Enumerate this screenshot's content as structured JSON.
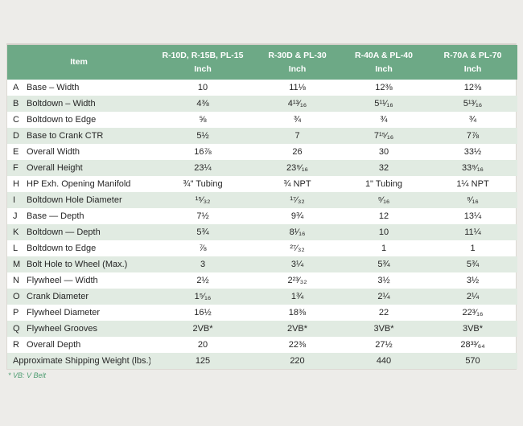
{
  "colors": {
    "page_bg": "#edece9",
    "header_green": "#6da986",
    "stripe_green": "#e1ebe2",
    "footnote_green": "#4f9d72"
  },
  "footnote": "* VB: V Belt",
  "table": {
    "header": {
      "item_label": "Item",
      "columns": [
        {
          "model": "R-10D, R-15B, PL-15",
          "unit": "Inch"
        },
        {
          "model": "R-30D & PL-30",
          "unit": "Inch"
        },
        {
          "model": "R-40A & PL-40",
          "unit": "Inch"
        },
        {
          "model": "R-70A & PL-70",
          "unit": "Inch"
        }
      ]
    },
    "rows": [
      {
        "letter": "A",
        "item": "Base – Width",
        "values": [
          "10",
          "11⅛",
          "12⅜",
          "12⅜"
        ]
      },
      {
        "letter": "B",
        "item": "Boltdown – Width",
        "values": [
          "4⅜",
          "4¹³⁄₁₆",
          "5¹¹⁄₁₆",
          "5¹³⁄₁₆"
        ]
      },
      {
        "letter": "C",
        "item": "Boltdown to Edge",
        "values": [
          "⅝",
          "¾",
          "¾",
          "¾"
        ]
      },
      {
        "letter": "D",
        "item": "Base to Crank CTR",
        "values": [
          "5½",
          "7",
          "7¹⁵⁄₁₆",
          "7⅞"
        ]
      },
      {
        "letter": "E",
        "item": "Overall Width",
        "values": [
          "16⅞",
          "26",
          "30",
          "33½"
        ]
      },
      {
        "letter": "F",
        "item": "Overall Height",
        "values": [
          "23¼",
          "23⁹⁄₁₆",
          "32",
          "33⁹⁄₁₆"
        ]
      },
      {
        "letter": "H",
        "item": "HP Exh. Opening Manifold",
        "values": [
          "¾\" Tubing",
          "¾ NPT",
          "1\" Tubing",
          "1¼ NPT"
        ]
      },
      {
        "letter": "I",
        "item": "Boltdown Hole Diameter",
        "values": [
          "¹⁵⁄₃₂",
          "¹⁷⁄₃₂",
          "⁹⁄₁₆",
          "⁹⁄₁₆"
        ]
      },
      {
        "letter": "J",
        "item": "Base — Depth",
        "values": [
          "7½",
          "9¾",
          "12",
          "13¼"
        ]
      },
      {
        "letter": "K",
        "item": "Boltdown — Depth",
        "values": [
          "5¾",
          "8¹⁄₁₆",
          "10",
          "11¼"
        ]
      },
      {
        "letter": "L",
        "item": "Boltdown to Edge",
        "values": [
          "⅞",
          "²⁷⁄₃₂",
          "1",
          "1"
        ]
      },
      {
        "letter": "M",
        "item": "Bolt Hole to Wheel (Max.)",
        "values": [
          "3",
          "3¼",
          "5¾",
          "5¾"
        ]
      },
      {
        "letter": "N",
        "item": "Flywheel — Width",
        "values": [
          "2½",
          "2²³⁄₃₂",
          "3½",
          "3½"
        ]
      },
      {
        "letter": "O",
        "item": "Crank Diameter",
        "values": [
          "1⁵⁄₁₆",
          "1¾",
          "2¼",
          "2¼"
        ]
      },
      {
        "letter": "P",
        "item": "Flywheel Diameter",
        "values": [
          "16½",
          "18⅜",
          "22",
          "22³⁄₁₆"
        ]
      },
      {
        "letter": "Q",
        "item": "Flywheel Grooves",
        "values": [
          "2VB*",
          "2VB*",
          "3VB*",
          "3VB*"
        ]
      },
      {
        "letter": "R",
        "item": "Overall Depth",
        "values": [
          "20",
          "22⅜",
          "27½",
          "28³³⁄₆₄"
        ]
      },
      {
        "letter": "",
        "item": "Approximate Shipping Weight (lbs.)",
        "values": [
          "125",
          "220",
          "440",
          "570"
        ]
      }
    ]
  }
}
